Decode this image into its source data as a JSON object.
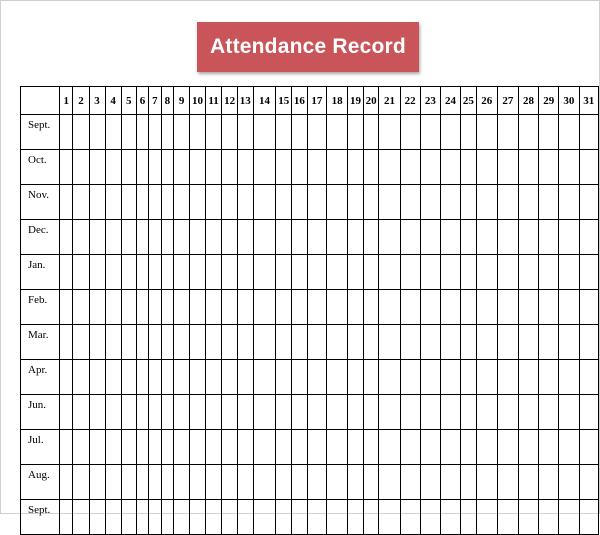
{
  "title": "Attendance Record",
  "days": [
    "1",
    "2",
    "3",
    "4",
    "5",
    "6",
    "7",
    "8",
    "9",
    "10",
    "11",
    "12",
    "13",
    "14",
    "15",
    "16",
    "17",
    "18",
    "19",
    "20",
    "21",
    "22",
    "23",
    "24",
    "25",
    "26",
    "27",
    "28",
    "29",
    "30",
    "31"
  ],
  "months": [
    "Sept.",
    "Oct.",
    "Nov.",
    "Dec.",
    "Jan.",
    "Feb.",
    "Mar.",
    "Apr.",
    "Jun.",
    "Jul.",
    "Aug.",
    "Sept."
  ],
  "colors": {
    "banner": "#c9545a",
    "banner_text": "#ffffff",
    "grid_line": "#000000"
  }
}
